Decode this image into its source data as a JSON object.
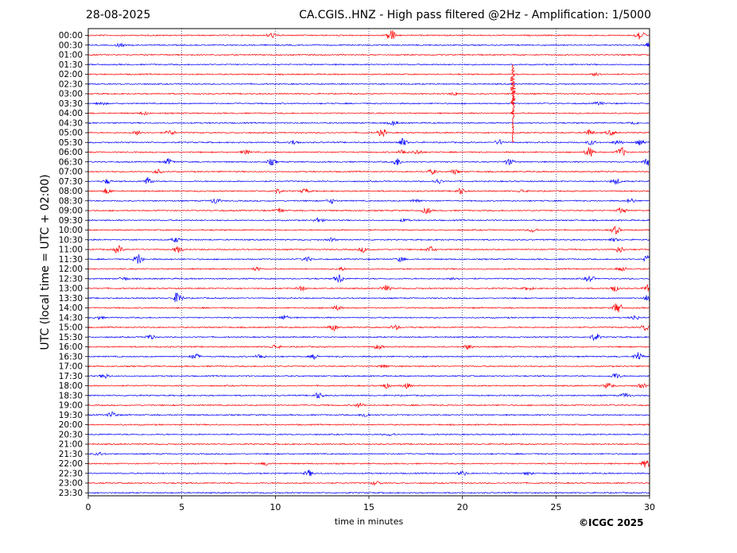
{
  "header": {
    "date": "28-08-2025",
    "title": "CA.CGIS..HNZ - High pass filtered @2Hz - Amplification: 1/5000"
  },
  "footer": {
    "copyright": "©ICGC 2025"
  },
  "chart_data": {
    "type": "line",
    "title": "CA.CGIS..HNZ - High pass filtered @2Hz - Amplification: 1/5000",
    "xlabel": "time in minutes",
    "ylabel": "UTC (local time = UTC + 02:00)",
    "xlim": [
      0,
      30
    ],
    "xticks": [
      "0",
      "5",
      "10",
      "15",
      "20",
      "25",
      "30"
    ],
    "grid": "vertical dotted lines at 5-minute intervals",
    "colors": {
      "red": "#ff0000",
      "blue": "#0000ff"
    },
    "rows": [
      {
        "label": "00:00",
        "color": "red",
        "events": [
          [
            9.8,
            3
          ],
          [
            16.2,
            8
          ],
          [
            29.5,
            7
          ]
        ]
      },
      {
        "label": "00:30",
        "color": "blue",
        "events": [
          [
            1.7,
            2
          ],
          [
            29.9,
            3
          ]
        ]
      },
      {
        "label": "01:00",
        "color": "red",
        "events": []
      },
      {
        "label": "01:30",
        "color": "blue",
        "events": []
      },
      {
        "label": "02:00",
        "color": "red",
        "events": [
          [
            27.2,
            3
          ]
        ]
      },
      {
        "label": "02:30",
        "color": "blue",
        "events": []
      },
      {
        "label": "03:00",
        "color": "red",
        "events": [
          [
            19.6,
            2
          ]
        ]
      },
      {
        "label": "03:30",
        "color": "blue",
        "events": [
          [
            0.7,
            2
          ],
          [
            27.3,
            2
          ]
        ]
      },
      {
        "label": "04:00",
        "color": "red",
        "events": [
          [
            3.0,
            2
          ]
        ]
      },
      {
        "label": "04:30",
        "color": "blue",
        "events": [
          [
            16.3,
            3
          ],
          [
            29.1,
            2
          ]
        ]
      },
      {
        "label": "05:00",
        "color": "red",
        "events": [
          [
            2.7,
            3
          ],
          [
            4.4,
            3
          ],
          [
            15.7,
            5
          ],
          [
            26.8,
            4
          ],
          [
            27.9,
            3
          ]
        ]
      },
      {
        "label": "05:30",
        "color": "blue",
        "events": [
          [
            11.0,
            3
          ],
          [
            16.8,
            5
          ],
          [
            22.0,
            3
          ],
          [
            26.9,
            3
          ],
          [
            28.3,
            3
          ],
          [
            29.5,
            3
          ]
        ]
      },
      {
        "label": "06:00",
        "color": "red",
        "events": [
          [
            8.4,
            3
          ],
          [
            16.8,
            3
          ],
          [
            17.6,
            3
          ],
          [
            26.8,
            7
          ],
          [
            28.5,
            6
          ]
        ]
      },
      {
        "label": "06:30",
        "color": "blue",
        "events": [
          [
            4.3,
            4
          ],
          [
            9.8,
            4
          ],
          [
            16.5,
            5
          ],
          [
            22.5,
            4
          ],
          [
            29.9,
            5
          ]
        ]
      },
      {
        "label": "07:00",
        "color": "red",
        "events": [
          [
            3.7,
            3
          ],
          [
            18.4,
            3
          ],
          [
            19.6,
            3
          ]
        ]
      },
      {
        "label": "07:30",
        "color": "blue",
        "events": [
          [
            1.0,
            3
          ],
          [
            3.2,
            5
          ],
          [
            18.7,
            3
          ],
          [
            28.2,
            4
          ]
        ]
      },
      {
        "label": "08:00",
        "color": "red",
        "events": [
          [
            1.0,
            4
          ],
          [
            10.1,
            3
          ],
          [
            11.6,
            3
          ],
          [
            19.9,
            4
          ],
          [
            23.2,
            2
          ]
        ]
      },
      {
        "label": "08:30",
        "color": "blue",
        "events": [
          [
            6.8,
            4
          ],
          [
            13.0,
            3
          ],
          [
            17.5,
            3
          ],
          [
            29.0,
            3
          ]
        ]
      },
      {
        "label": "09:00",
        "color": "red",
        "events": [
          [
            10.2,
            3
          ],
          [
            18.1,
            4
          ],
          [
            28.5,
            4
          ]
        ]
      },
      {
        "label": "09:30",
        "color": "blue",
        "events": [
          [
            12.3,
            3
          ],
          [
            16.9,
            2
          ]
        ]
      },
      {
        "label": "10:00",
        "color": "red",
        "events": [
          [
            23.8,
            3
          ],
          [
            28.2,
            5
          ]
        ]
      },
      {
        "label": "10:30",
        "color": "blue",
        "events": [
          [
            4.7,
            3
          ],
          [
            13.0,
            2
          ],
          [
            28.1,
            2
          ]
        ]
      },
      {
        "label": "11:00",
        "color": "red",
        "events": [
          [
            1.6,
            5
          ],
          [
            4.8,
            4
          ],
          [
            14.7,
            3
          ],
          [
            18.3,
            4
          ],
          [
            28.4,
            4
          ]
        ]
      },
      {
        "label": "11:30",
        "color": "blue",
        "events": [
          [
            2.7,
            7
          ],
          [
            11.7,
            3
          ],
          [
            16.7,
            3
          ],
          [
            29.9,
            5
          ]
        ]
      },
      {
        "label": "12:00",
        "color": "red",
        "events": [
          [
            9.0,
            2
          ],
          [
            13.5,
            2
          ],
          [
            28.5,
            3
          ]
        ]
      },
      {
        "label": "12:30",
        "color": "blue",
        "events": [
          [
            1.9,
            2
          ],
          [
            13.4,
            6
          ],
          [
            19.6,
            2
          ],
          [
            26.8,
            4
          ]
        ]
      },
      {
        "label": "13:00",
        "color": "red",
        "events": [
          [
            11.4,
            3
          ],
          [
            15.9,
            4
          ],
          [
            23.5,
            2
          ],
          [
            28.1,
            4
          ],
          [
            29.9,
            4
          ]
        ]
      },
      {
        "label": "13:30",
        "color": "blue",
        "events": [
          [
            4.8,
            8
          ],
          [
            29.9,
            4
          ]
        ]
      },
      {
        "label": "14:00",
        "color": "red",
        "events": [
          [
            13.3,
            3
          ],
          [
            28.3,
            7
          ]
        ]
      },
      {
        "label": "14:30",
        "color": "blue",
        "events": [
          [
            0.6,
            2
          ],
          [
            10.5,
            3
          ],
          [
            29.2,
            3
          ]
        ]
      },
      {
        "label": "15:00",
        "color": "red",
        "events": [
          [
            13.1,
            4
          ],
          [
            16.4,
            3
          ],
          [
            29.8,
            4
          ]
        ]
      },
      {
        "label": "15:30",
        "color": "blue",
        "events": [
          [
            3.3,
            3
          ],
          [
            27.1,
            5
          ]
        ]
      },
      {
        "label": "16:00",
        "color": "red",
        "events": [
          [
            10.0,
            3
          ],
          [
            15.5,
            3
          ],
          [
            20.3,
            3
          ]
        ]
      },
      {
        "label": "16:30",
        "color": "blue",
        "events": [
          [
            5.7,
            4
          ],
          [
            9.2,
            3
          ],
          [
            12.1,
            3
          ],
          [
            29.4,
            6
          ]
        ]
      },
      {
        "label": "17:00",
        "color": "red",
        "events": [
          [
            15.8,
            2
          ]
        ]
      },
      {
        "label": "17:30",
        "color": "blue",
        "events": [
          [
            0.9,
            3
          ],
          [
            28.2,
            4
          ]
        ]
      },
      {
        "label": "18:00",
        "color": "red",
        "events": [
          [
            15.9,
            3
          ],
          [
            17.0,
            3
          ],
          [
            27.8,
            4
          ],
          [
            29.6,
            3
          ]
        ]
      },
      {
        "label": "18:30",
        "color": "blue",
        "events": [
          [
            12.3,
            4
          ],
          [
            28.7,
            3
          ]
        ]
      },
      {
        "label": "19:00",
        "color": "red",
        "events": [
          [
            14.5,
            3
          ]
        ]
      },
      {
        "label": "19:30",
        "color": "blue",
        "events": [
          [
            1.3,
            4
          ],
          [
            14.8,
            3
          ]
        ]
      },
      {
        "label": "20:00",
        "color": "red",
        "events": []
      },
      {
        "label": "20:30",
        "color": "blue",
        "events": [
          [
            16.2,
            2
          ]
        ]
      },
      {
        "label": "21:00",
        "color": "red",
        "events": []
      },
      {
        "label": "21:30",
        "color": "blue",
        "events": [
          [
            0.6,
            2
          ]
        ]
      },
      {
        "label": "22:00",
        "color": "red",
        "events": [
          [
            9.5,
            2
          ],
          [
            29.8,
            5
          ]
        ]
      },
      {
        "label": "22:30",
        "color": "blue",
        "events": [
          [
            11.8,
            4
          ],
          [
            20.0,
            3
          ],
          [
            23.5,
            2
          ]
        ]
      },
      {
        "label": "23:00",
        "color": "red",
        "events": [
          [
            15.4,
            3
          ]
        ]
      },
      {
        "label": "23:30",
        "color": "blue",
        "events": []
      }
    ],
    "annotations": [
      {
        "text": "large transient spanning 01:30–05:30 rows",
        "x_minutes": 22.7
      }
    ]
  }
}
